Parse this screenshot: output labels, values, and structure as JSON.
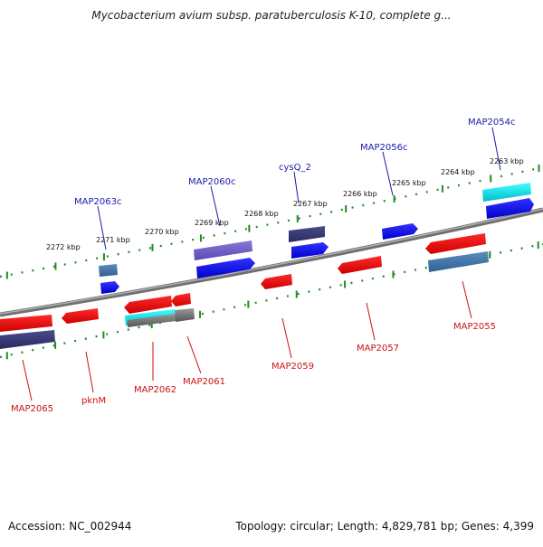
{
  "title": "Mycobacterium avium subsp. paratuberculosis K-10, complete g...",
  "footer": {
    "accession": "Accession: NC_002944",
    "summary": "Topology: circular; Length: 4,829,781 bp; Genes: 4,399"
  },
  "colors": {
    "forward_label": "#1a1aaa",
    "reverse_label": "#cc1111",
    "ruler": "#228b22",
    "backbone": "#888888"
  },
  "ruler_labels": [
    "2263 kbp",
    "2264 kbp",
    "2265 kbp",
    "2266 kbp",
    "2267 kbp",
    "2268 kbp",
    "2269 kbp",
    "2270 kbp",
    "2271 kbp",
    "2272 kbp"
  ],
  "forward_genes": [
    "MAP2054c",
    "MAP2056c",
    "cysQ_2",
    "MAP2060c",
    "MAP2063c"
  ],
  "reverse_genes": [
    "MAP2055",
    "MAP2057",
    "MAP2059",
    "MAP2061",
    "MAP2062",
    "pknM",
    "MAP2065"
  ]
}
